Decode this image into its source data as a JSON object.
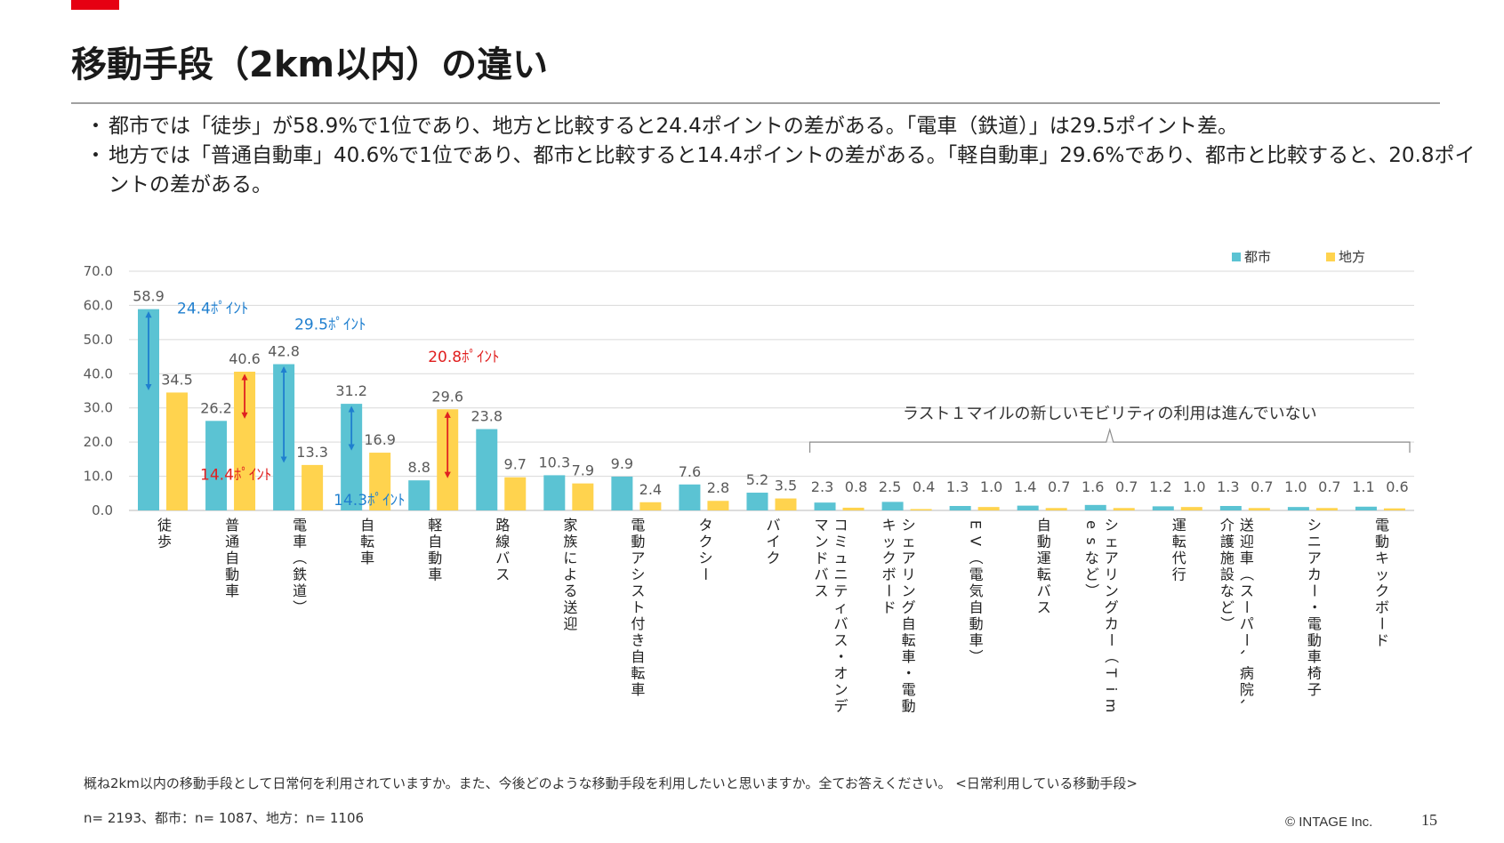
{
  "title": "移動手段（2km以内）の違い",
  "bullets": [
    "都市では「徒歩」が58.9%で1位であり、地方と比較すると24.4ポイントの差がある。「電車（鉄道）」は29.5ポイント差。",
    "地方では「普通自動車」40.6%で1位であり、都市と比較すると14.4ポイントの差がある。「軽自動車」29.6%であり、都市と比較すると、20.8ポイントの差がある。"
  ],
  "chart_data": {
    "type": "bar",
    "categories": [
      "徒歩",
      "普通自動車",
      "電車（鉄道）",
      "自転車",
      "軽自動車",
      "路線バス",
      "家族による送迎",
      "電動アシスト付き自転車",
      "タクシー",
      "バイク",
      "コミュニティバス・オンデマンドバス",
      "シェアリング自転車・電動キックボード",
      "EV（電気自動車）",
      "自動運転バス",
      "シェアリングカー（Timesなど）",
      "運転代行",
      "送迎車（スーパー、病院、介護施設など）",
      "シニアカー・電動車椅子",
      "電動キックボード"
    ],
    "series": [
      {
        "name": "都市",
        "color": "#5bc3d3",
        "values": [
          58.9,
          26.2,
          42.8,
          31.2,
          8.8,
          23.8,
          10.3,
          9.9,
          7.6,
          5.2,
          2.3,
          2.5,
          1.3,
          1.4,
          1.6,
          1.2,
          1.3,
          1.0,
          1.1
        ]
      },
      {
        "name": "地方",
        "color": "#ffd34e",
        "values": [
          34.5,
          40.6,
          13.3,
          16.9,
          29.6,
          9.7,
          7.9,
          2.4,
          2.8,
          3.5,
          0.8,
          0.4,
          1.0,
          0.7,
          0.7,
          1.0,
          0.7,
          0.7,
          0.6
        ]
      }
    ],
    "yticks": [
      "0.0",
      "10.0",
      "20.0",
      "30.0",
      "40.0",
      "50.0",
      "60.0",
      "70.0"
    ],
    "ylim": [
      0,
      70
    ],
    "grid": true,
    "legend": "top-right",
    "annotations": [
      {
        "text": "24.4ﾎﾟｲﾝﾄ",
        "color": "#1f7fcf",
        "from": 58.9,
        "to": 34.5,
        "category": 0,
        "series": 0
      },
      {
        "text": "14.4ﾎﾟｲﾝﾄ",
        "color": "#e02020",
        "from": 40.6,
        "to": 26.2,
        "category": 1,
        "series": 1
      },
      {
        "text": "29.5ﾎﾟｲﾝﾄ",
        "color": "#1f7fcf",
        "from": 42.8,
        "to": 13.3,
        "category": 2,
        "series": 0
      },
      {
        "text": "14.3ﾎﾟｲﾝﾄ",
        "color": "#1f7fcf",
        "from": 31.2,
        "to": 16.9,
        "category": 3,
        "series": 0
      },
      {
        "text": "20.8ﾎﾟｲﾝﾄ",
        "color": "#e02020",
        "from": 29.6,
        "to": 8.8,
        "category": 4,
        "series": 1
      }
    ],
    "bracket_label": "ラスト１マイルの新しいモビリティの利用は進んでいない"
  },
  "footnotes": {
    "question": "概ね2km以内の移動手段として日常何を利用されていますか。また、今後どのような移動手段を利用したいと思いますか。全てお答えください。 <日常利用している移動手段>",
    "sample": "n= 2193、都市：n= 1087、地方：n= 1106"
  },
  "copyright": "© INTAGE Inc.",
  "page_number": "15"
}
